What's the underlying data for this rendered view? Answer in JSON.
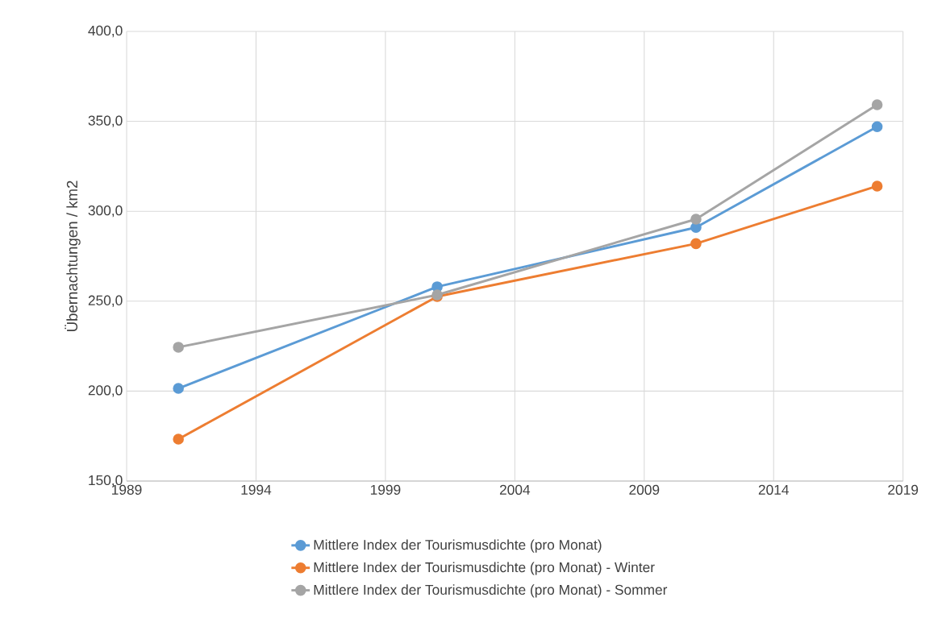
{
  "chart_data": {
    "type": "line",
    "ylabel": "Übernachtungen / km2",
    "x": [
      1991,
      2001,
      2011,
      2018
    ],
    "series": [
      {
        "name": "Mittlere Index der Tourismusdichte (pro Monat)",
        "color": "#5b9bd5",
        "values": [
          201.5,
          258,
          291,
          347
        ]
      },
      {
        "name": "Mittlere Index der Tourismusdichte (pro Monat) - Winter",
        "color": "#ed7d31",
        "values": [
          173.3,
          252.6,
          282,
          314
        ]
      },
      {
        "name": "Mittlere Index der Tourismusdichte (pro Monat) - Sommer",
        "color": "#a5a5a5",
        "values": [
          224.4,
          253.5,
          295.6,
          359.2
        ]
      }
    ],
    "xlim": [
      1989,
      2019
    ],
    "xticks": [
      1989,
      1994,
      1999,
      2004,
      2009,
      2014,
      2019
    ],
    "ylim": [
      150,
      400
    ],
    "yticks": [
      {
        "value": 150,
        "label": "150,0"
      },
      {
        "value": 200,
        "label": "200,0"
      },
      {
        "value": 250,
        "label": "250,0"
      },
      {
        "value": 300,
        "label": "300,0"
      },
      {
        "value": 350,
        "label": "350,0"
      },
      {
        "value": 400,
        "label": "400,0"
      }
    ],
    "grid": true,
    "legend": "bottom",
    "marker": "circle"
  }
}
